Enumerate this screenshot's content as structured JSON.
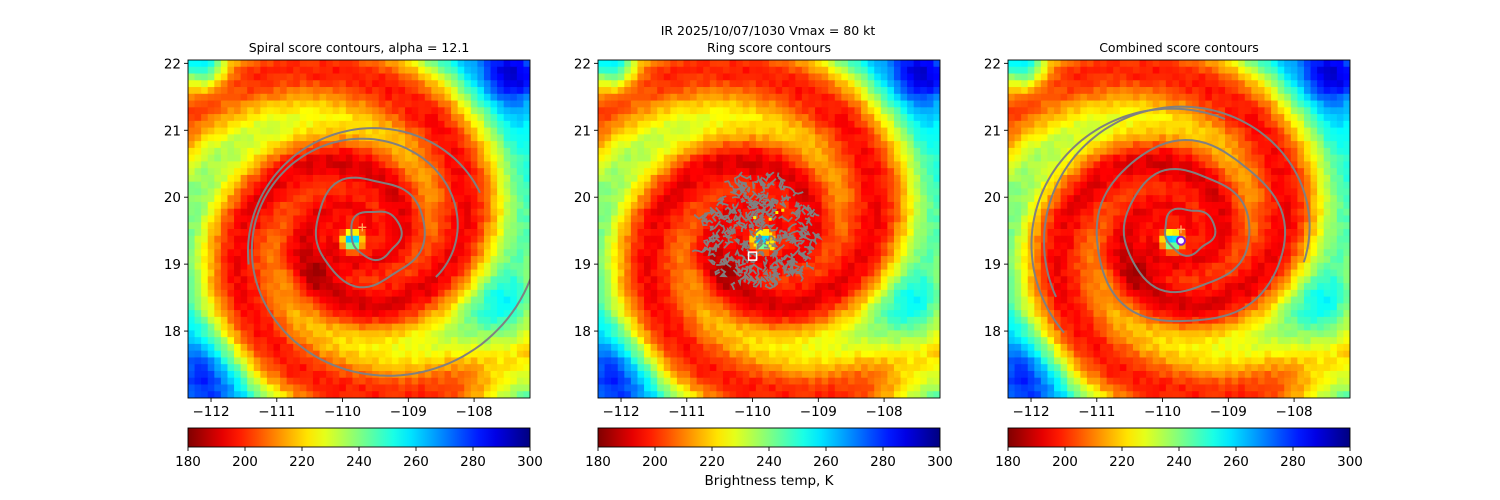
{
  "figure": {
    "suptitle_line": "IR  2025/10/07/1030    Vmax = 80 kt",
    "colorbar_label": "Brightness temp, K"
  },
  "chart_data": [
    {
      "type": "heatmap",
      "title": "Spiral score contours, alpha = 12.1",
      "field": "Brightness temp, K",
      "x_ticks": [
        -112,
        -111,
        -110,
        -109,
        -108
      ],
      "y_ticks": [
        18,
        19,
        20,
        21,
        22
      ],
      "xlim": [
        -112.35,
        -107.15
      ],
      "ylim": [
        17.0,
        22.05
      ],
      "overlay": "spiral score contours",
      "markers": [
        {
          "type": "plus",
          "lon": -109.7,
          "lat": 19.55
        }
      ]
    },
    {
      "type": "heatmap",
      "title": "Ring score contours",
      "field": "Brightness temp, K",
      "x_ticks": [
        -112,
        -111,
        -110,
        -109,
        -108
      ],
      "y_ticks": [
        18,
        19,
        20,
        21,
        22
      ],
      "xlim": [
        -112.35,
        -107.15
      ],
      "ylim": [
        17.0,
        22.05
      ],
      "overlay": "ring score contours",
      "markers": [
        {
          "type": "square",
          "lon": -110.0,
          "lat": 19.12
        }
      ]
    },
    {
      "type": "heatmap",
      "title": "Combined score contours",
      "field": "Brightness temp, K",
      "x_ticks": [
        -112,
        -111,
        -110,
        -109,
        -108
      ],
      "y_ticks": [
        18,
        19,
        20,
        21,
        22
      ],
      "xlim": [
        -112.35,
        -107.15
      ],
      "ylim": [
        17.0,
        22.05
      ],
      "overlay": "combined score contours",
      "markers": [
        {
          "type": "plus",
          "lon": -109.72,
          "lat": 19.52
        },
        {
          "type": "circle",
          "lon": -109.72,
          "lat": 19.35
        }
      ]
    }
  ],
  "colorbar": {
    "ticks": [
      180,
      200,
      220,
      240,
      260,
      280,
      300
    ],
    "range": [
      180,
      300
    ],
    "colormap": "jet_r"
  },
  "storm_center": {
    "lon": -109.85,
    "lat": 19.45
  },
  "colors": {
    "contour": "#808080",
    "plus": "#ffb060",
    "circle_edge": "#7a1fd8",
    "circle_fill": "#ffffff"
  }
}
